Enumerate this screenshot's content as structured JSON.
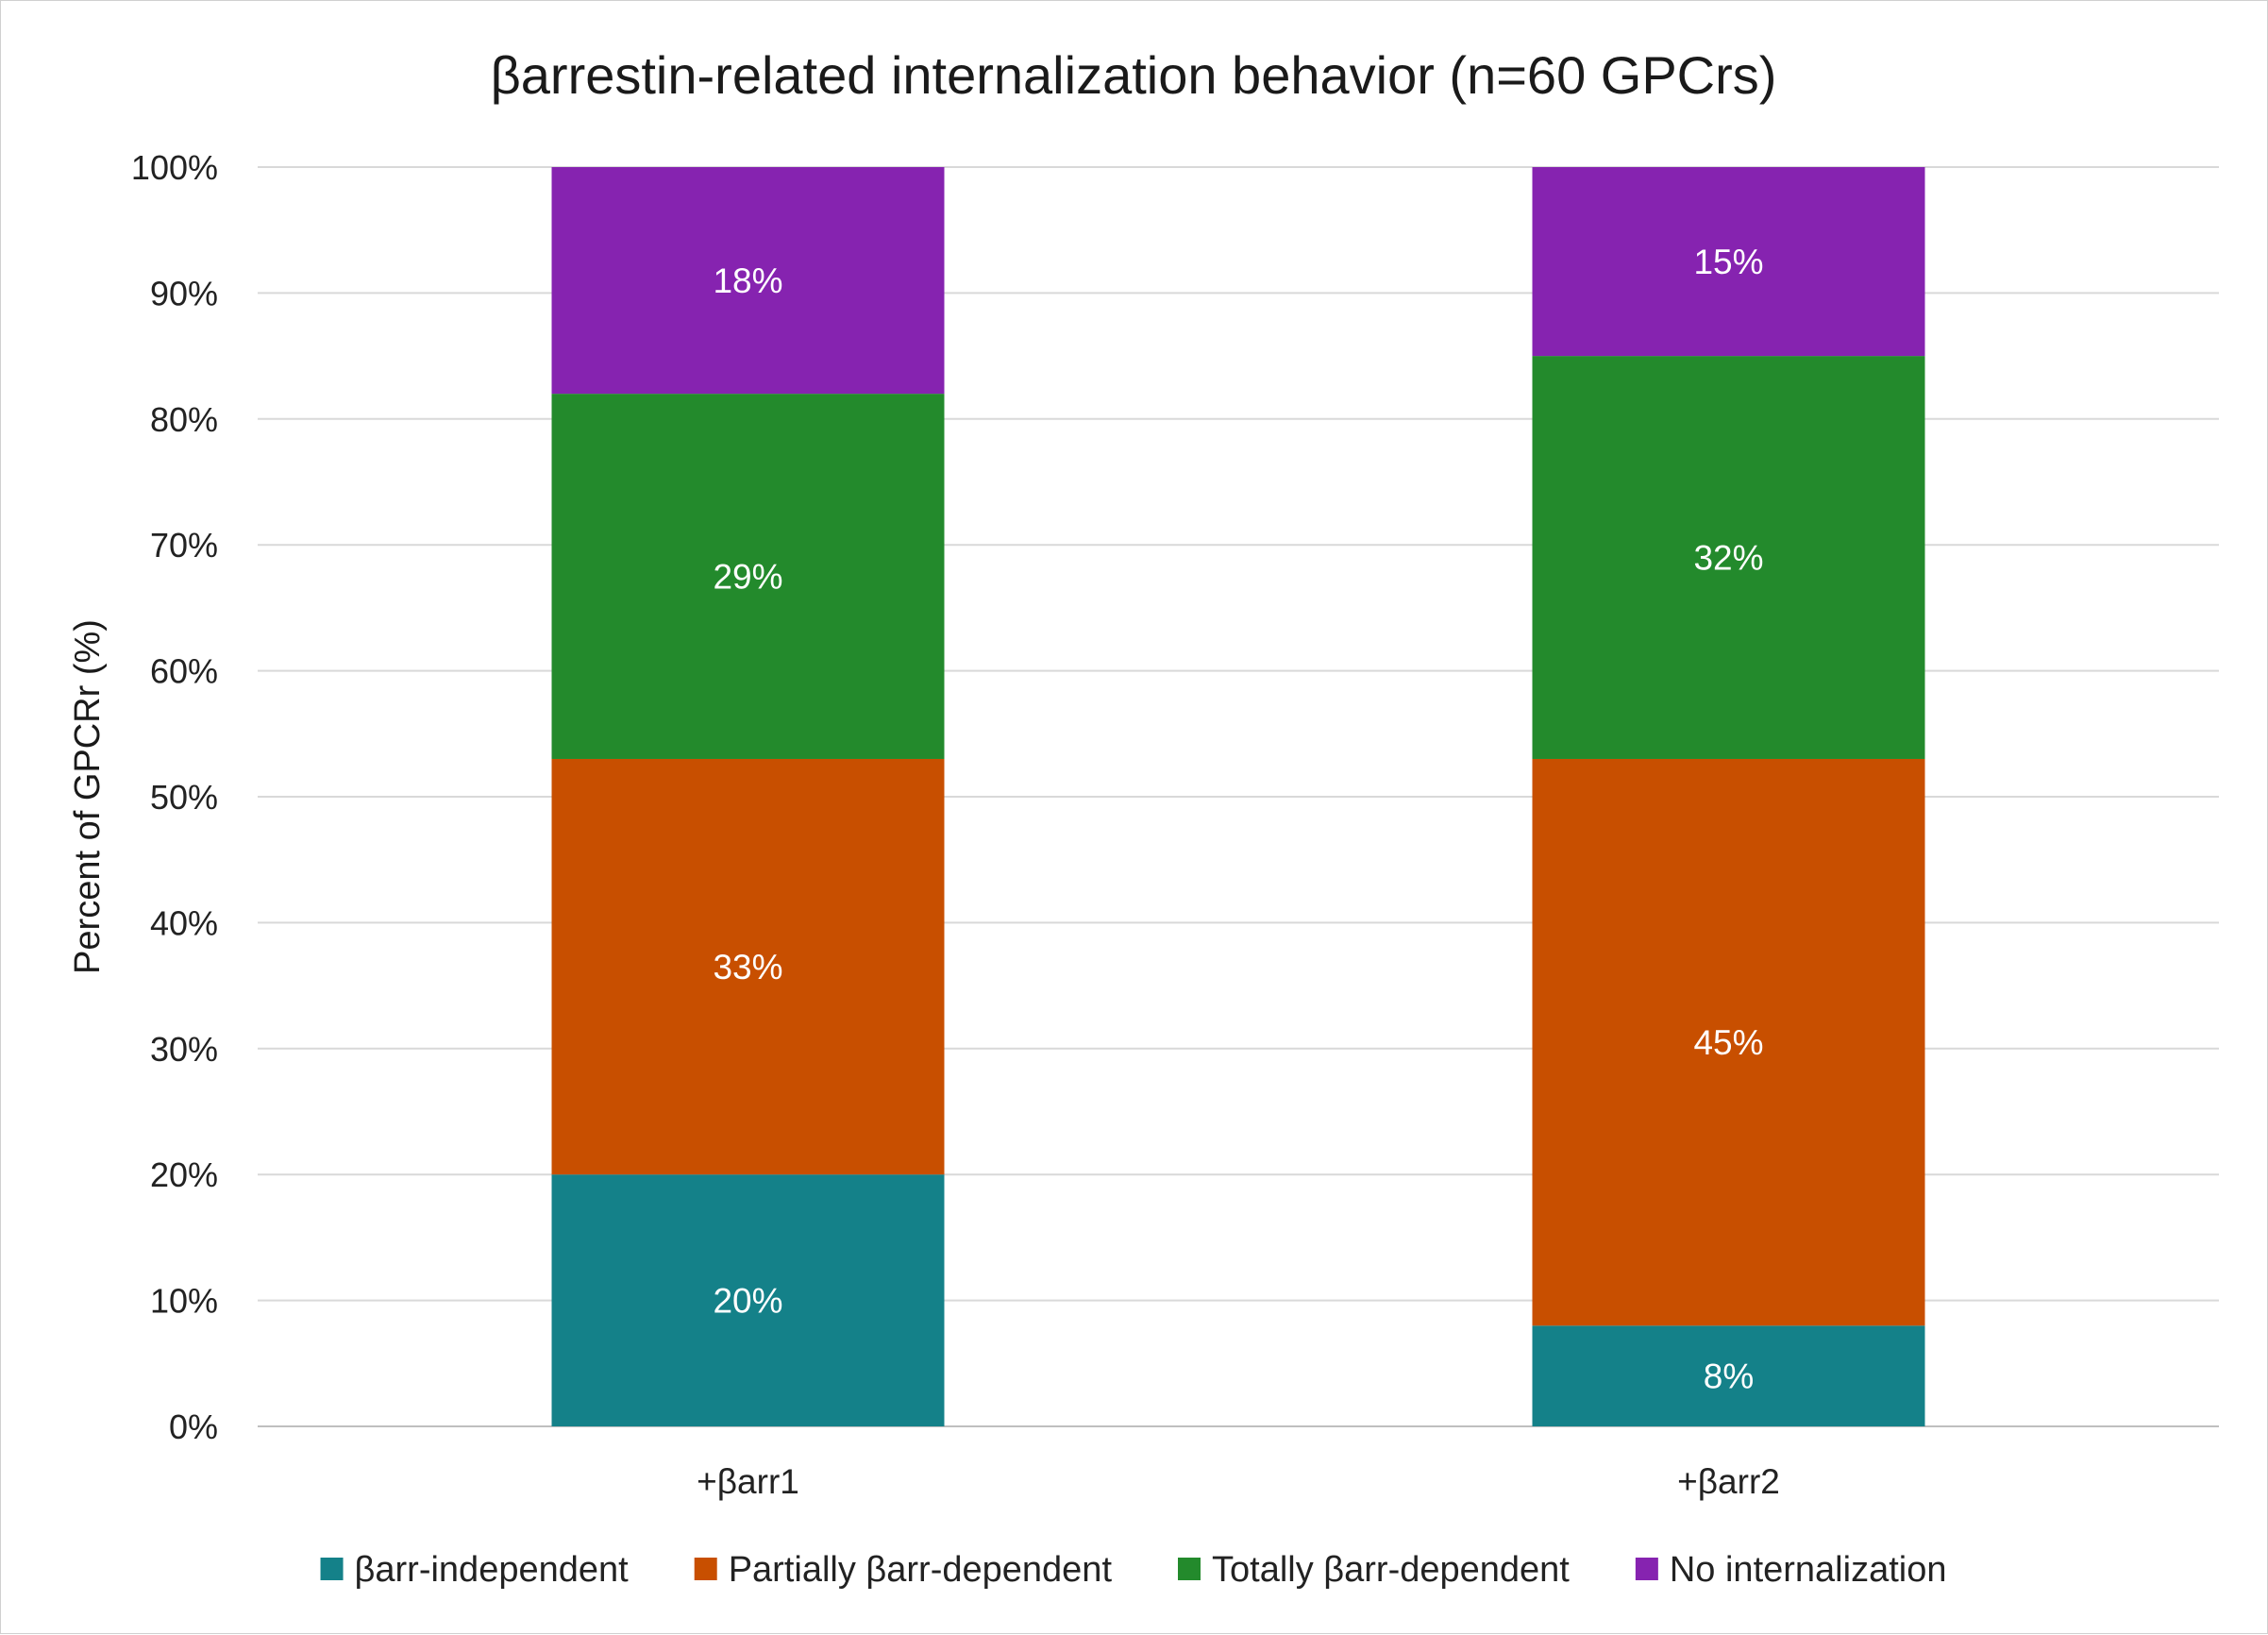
{
  "chart_data": {
    "type": "bar",
    "stacked": true,
    "title": "βarrestin-related internalization behavior (n=60 GPCrs)",
    "xlabel": "",
    "ylabel": "Percent of GPCRr (%)",
    "ylim": [
      0,
      100
    ],
    "yticks": [
      "0%",
      "10%",
      "20%",
      "30%",
      "40%",
      "50%",
      "60%",
      "70%",
      "80%",
      "90%",
      "100%"
    ],
    "categories": [
      "+βarr1",
      "+βarr2"
    ],
    "series": [
      {
        "name": "βarr-independent",
        "color": "#148189",
        "values": [
          20,
          8
        ],
        "labels": [
          "20%",
          "8%"
        ]
      },
      {
        "name": "Partially βarr-dependent",
        "color": "#c84f00",
        "values": [
          33,
          45
        ],
        "labels": [
          "33%",
          "45%"
        ]
      },
      {
        "name": "Totally βarr-dependent",
        "color": "#238a2c",
        "values": [
          29,
          32
        ],
        "labels": [
          "29%",
          "32%"
        ]
      },
      {
        "name": "No internalization",
        "color": "#8623b0",
        "values": [
          18,
          15
        ],
        "labels": [
          "18%",
          "15%"
        ]
      }
    ],
    "grid": true,
    "legend_position": "bottom"
  }
}
